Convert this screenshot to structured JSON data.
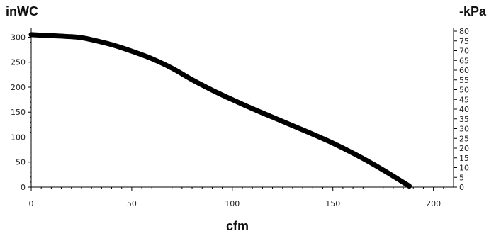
{
  "chart_data": {
    "type": "line",
    "title": "",
    "xlabel": "cfm",
    "ylabel_left": "inWC",
    "ylabel_right": "-kPa",
    "xlim": [
      0,
      210
    ],
    "ylim_left": [
      0,
      312
    ],
    "ylim_right": [
      0,
      80
    ],
    "x_ticks": [
      0,
      50,
      100,
      150,
      200
    ],
    "y_ticks_left": [
      0,
      50,
      100,
      150,
      200,
      250,
      300
    ],
    "y_ticks_right": [
      0,
      5,
      10,
      15,
      20,
      25,
      30,
      35,
      40,
      45,
      50,
      55,
      60,
      65,
      70,
      75,
      80
    ],
    "grid": false,
    "line_color": "#000000",
    "series": [
      {
        "x": [
          0,
          10,
          20,
          25,
          30,
          40,
          50,
          60,
          70,
          80,
          90,
          100,
          110,
          120,
          130,
          140,
          150,
          160,
          170,
          180,
          188
        ],
        "y": [
          305,
          303,
          301,
          299,
          295,
          285,
          272,
          257,
          238,
          215,
          194,
          175,
          157,
          140,
          123,
          106,
          88,
          68,
          46,
          22,
          2
        ]
      }
    ]
  }
}
